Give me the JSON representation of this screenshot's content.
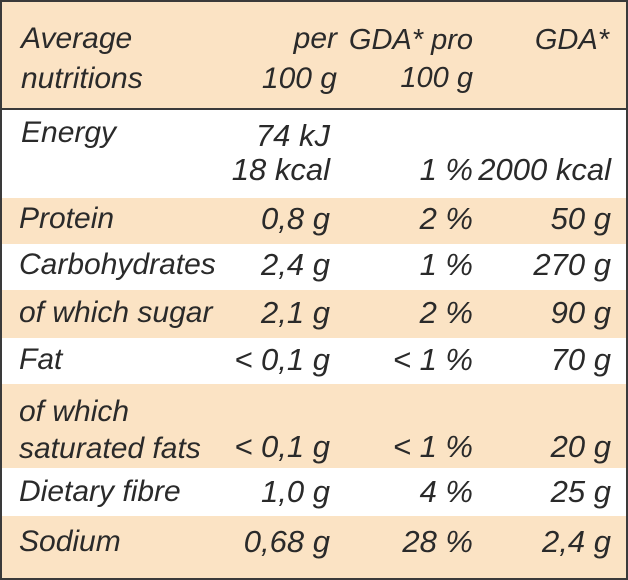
{
  "header": {
    "col1_line1": "Average",
    "col1_line2": "nutritions",
    "col2_line1": "per",
    "col2_line2": "100 g",
    "col3_line1": "GDA* pro",
    "col3_line2": "100 g",
    "col4_line1": "GDA*"
  },
  "rows": [
    {
      "label": "Energy",
      "per100": "74 kJ",
      "per100_2": "18 kcal",
      "gda_pct": "1 %",
      "gda": "2000 kcal"
    },
    {
      "label": "Protein",
      "per100": "0,8 g",
      "gda_pct": "2 %",
      "gda": "50 g"
    },
    {
      "label": "Carbohydrates",
      "per100": "2,4 g",
      "gda_pct": "1 %",
      "gda": "270 g"
    },
    {
      "label": "of which sugar",
      "per100": "2,1 g",
      "gda_pct": "2 %",
      "gda": "90 g"
    },
    {
      "label": "Fat",
      "per100": "< 0,1 g",
      "gda_pct": "< 1 %",
      "gda": "70 g"
    },
    {
      "label": "of which",
      "label_2": "saturated fats",
      "per100": "< 0,1 g",
      "gda_pct": "< 1 %",
      "gda": "20 g"
    },
    {
      "label": "Dietary fibre",
      "per100": "1,0 g",
      "gda_pct": "4 %",
      "gda": "25 g"
    },
    {
      "label": "Sodium",
      "per100": "0,68 g",
      "gda_pct": "28 %",
      "gda": "2,4 g"
    }
  ],
  "colors": {
    "shade": "#fbe3c4",
    "border": "#3a3a3a",
    "text": "#2a2a2a"
  }
}
